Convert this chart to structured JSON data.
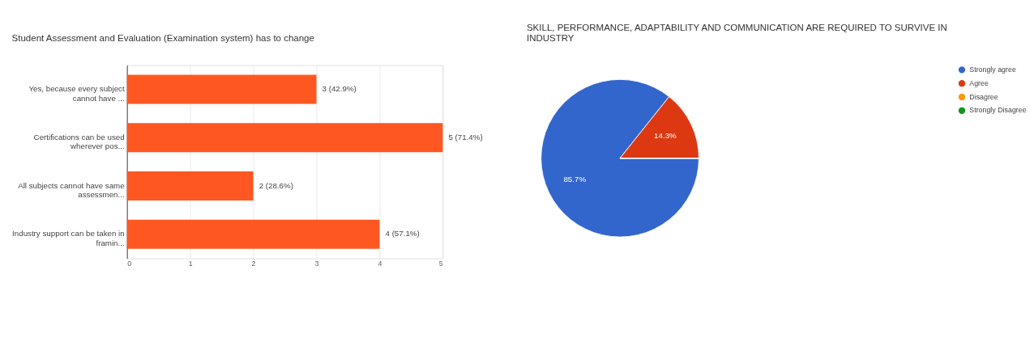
{
  "chart_data": [
    {
      "type": "bar",
      "title": "Student Assessment and Evaluation (Examination system) has to change",
      "orientation": "horizontal",
      "categories": [
        "Yes, because every subject\ncannot have ...",
        "Certifications can be used\nwherever pos...",
        "All subjects cannot have same\nassessmen...",
        "Industry support can be taken in\nframin..."
      ],
      "values": [
        3,
        5,
        2,
        4
      ],
      "color": "#ff5722",
      "value_labels": [
        "3 (42.9%)",
        "5 (71.4%)",
        "2 (28.6%)",
        "4 (57.1%)"
      ],
      "xlim": [
        0,
        5
      ],
      "xticks": [
        0,
        1,
        2,
        3,
        4,
        5
      ],
      "grid": "x"
    },
    {
      "type": "pie",
      "title": "SKILL, PERFORMANCE, ADAPTABILITY AND COMMUNICATION ARE REQUIRED TO SURVIVE IN\nINDUSTRY",
      "categories": [
        "Strongly agree",
        "Agree",
        "Disagree",
        "Strongly Disagree"
      ],
      "values": [
        85.7,
        14.3,
        0,
        0
      ],
      "colors": [
        "#3366cc",
        "#dc3912",
        "#ff9900",
        "#109618"
      ],
      "value_labels": [
        "85.7%",
        "14.3%",
        null,
        null
      ],
      "legend": "right"
    }
  ]
}
